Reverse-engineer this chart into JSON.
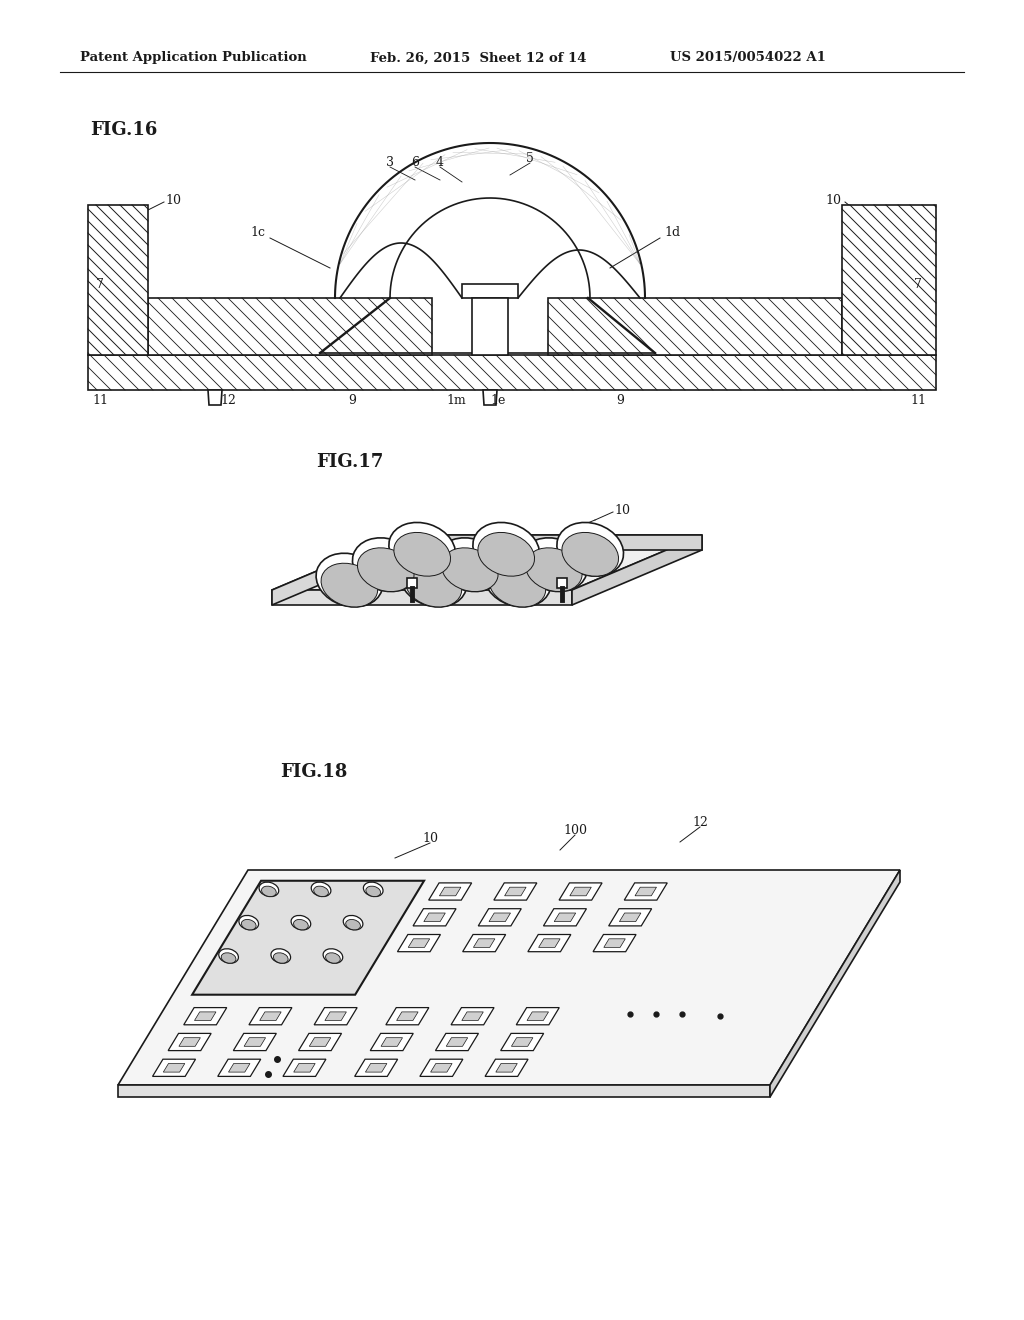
{
  "bg_color": "#ffffff",
  "header_left": "Patent Application Publication",
  "header_mid": "Feb. 26, 2015  Sheet 12 of 14",
  "header_right": "US 2015/0054022 A1",
  "fig16_label": "FIG.16",
  "fig17_label": "FIG.17",
  "fig18_label": "FIG.18",
  "line_color": "#1a1a1a",
  "label_fontsize": 9,
  "figlabel_fontsize": 13
}
